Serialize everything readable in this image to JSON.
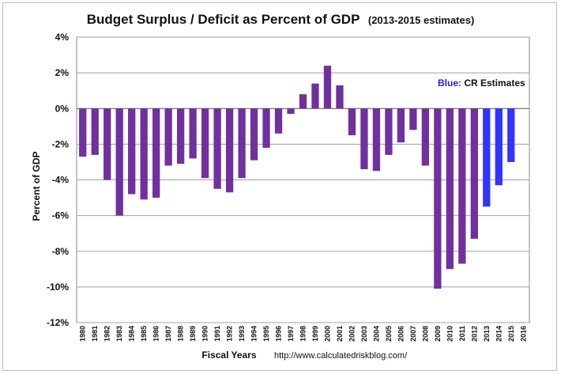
{
  "chart_data": {
    "type": "bar",
    "title": "Budget Surplus / Deficit as Percent of GDP",
    "subtitle": "(2013-2015 estimates)",
    "xlabel": "Fiscal Years",
    "ylabel": "Percent of GDP",
    "source": "http://www.calculatedriskblog.com/",
    "annotation": {
      "prefix": "Blue:",
      "text": " CR Estimates"
    },
    "ylim": [
      -12,
      4
    ],
    "yticks": [
      "4%",
      "2%",
      "0%",
      "-2%",
      "-4%",
      "-6%",
      "-8%",
      "-10%",
      "-12%"
    ],
    "ytick_values": [
      4,
      2,
      0,
      -2,
      -4,
      -6,
      -8,
      -10,
      -12
    ],
    "grid": true,
    "legend": "none",
    "categories": [
      "1980",
      "1981",
      "1982",
      "1983",
      "1984",
      "1985",
      "1986",
      "1987",
      "1988",
      "1989",
      "1990",
      "1991",
      "1992",
      "1993",
      "1994",
      "1995",
      "1996",
      "1997",
      "1998",
      "1999",
      "2000",
      "2001",
      "2002",
      "2003",
      "2004",
      "2005",
      "2006",
      "2007",
      "2008",
      "2009",
      "2010",
      "2011",
      "2012",
      "2013",
      "2014",
      "2015",
      "2016"
    ],
    "values": [
      -2.7,
      -2.6,
      -4.0,
      -6.0,
      -4.8,
      -5.1,
      -5.0,
      -3.2,
      -3.1,
      -2.8,
      -3.9,
      -4.5,
      -4.7,
      -3.9,
      -2.9,
      -2.2,
      -1.4,
      -0.3,
      0.8,
      1.4,
      2.4,
      1.3,
      -1.5,
      -3.4,
      -3.5,
      -2.6,
      -1.9,
      -1.2,
      -3.2,
      -10.1,
      -9.0,
      -8.7,
      -7.3,
      -5.5,
      -4.3,
      -3.0,
      null
    ],
    "estimated_years": [
      "2013",
      "2014",
      "2015"
    ],
    "colors": {
      "actual": "#7030A0",
      "estimate": "#3333FF",
      "annotation_prefix": "#2020E0"
    }
  }
}
